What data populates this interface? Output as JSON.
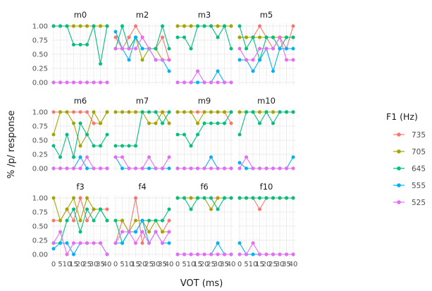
{
  "chart_data": {
    "type": "line",
    "title": "",
    "xlabel": "VOT (ms)",
    "ylabel": "% /p/ response",
    "x": [
      0,
      5,
      10,
      15,
      20,
      25,
      30,
      35,
      40
    ],
    "xticks": [
      "0",
      "5",
      "10",
      "15",
      "20",
      "25",
      "30",
      "35",
      "40"
    ],
    "ylim": [
      0,
      1
    ],
    "yticks": [
      "0.00",
      "0.25",
      "0.50",
      "0.75",
      "1.00"
    ],
    "grid": true,
    "legend": {
      "title": "F1 (Hz)",
      "placement": "right",
      "entries": [
        {
          "label": "735",
          "color": "#f8766d"
        },
        {
          "label": "705",
          "color": "#a3a500"
        },
        {
          "label": "645",
          "color": "#00bf7d"
        },
        {
          "label": "555",
          "color": "#00b0f6"
        },
        {
          "label": "525",
          "color": "#e76bf3"
        }
      ]
    },
    "facets": [
      {
        "title": "m0",
        "series": [
          {
            "name": "735",
            "values": [
              1,
              1,
              1,
              1,
              1,
              1,
              1,
              1,
              1
            ]
          },
          {
            "name": "705",
            "values": [
              1,
              1,
              1,
              1,
              1,
              1,
              1,
              1,
              1
            ]
          },
          {
            "name": "645",
            "values": [
              1,
              1,
              1,
              0.67,
              0.67,
              0.67,
              1,
              0.33,
              1
            ]
          },
          {
            "name": "555",
            "values": [
              0,
              0,
              0,
              0,
              0,
              0,
              0,
              0,
              0
            ]
          },
          {
            "name": "525",
            "values": [
              0,
              0,
              0,
              0,
              0,
              0,
              0,
              0,
              0
            ]
          }
        ]
      },
      {
        "title": "m2",
        "series": [
          {
            "name": "735",
            "values": [
              0.8,
              0.6,
              0.8,
              1,
              0.8,
              0.6,
              0.6,
              0.8,
              0.4
            ]
          },
          {
            "name": "705",
            "values": [
              0.6,
              0.6,
              0.6,
              0.8,
              0.4,
              0.6,
              0.6,
              0.4,
              0.4
            ]
          },
          {
            "name": "645",
            "values": [
              0.6,
              1,
              0.6,
              0.8,
              0.6,
              0.6,
              0.6,
              1,
              0.6
            ]
          },
          {
            "name": "555",
            "values": [
              0.9,
              0.6,
              0.4,
              0.8,
              0.6,
              0.6,
              0.4,
              0.4,
              0.2
            ]
          },
          {
            "name": "525",
            "values": [
              0.6,
              0.6,
              0.6,
              0.6,
              0.8,
              0.6,
              0.4,
              0.4,
              0.4
            ]
          }
        ]
      },
      {
        "title": "m3",
        "series": [
          {
            "name": "735",
            "values": [
              1,
              1,
              1,
              1,
              1,
              1,
              1,
              1,
              1
            ]
          },
          {
            "name": "705",
            "values": [
              1,
              1,
              1,
              1,
              1,
              1,
              1,
              1,
              1
            ]
          },
          {
            "name": "645",
            "values": [
              0.8,
              0.8,
              0.6,
              1,
              1,
              1,
              0.8,
              1,
              0.6
            ]
          },
          {
            "name": "555",
            "values": [
              0,
              0,
              0,
              0,
              0,
              0,
              0.2,
              0,
              0
            ]
          },
          {
            "name": "525",
            "values": [
              0,
              0,
              0,
              0.2,
              0,
              0,
              0,
              0,
              0
            ]
          }
        ]
      },
      {
        "title": "m5",
        "series": [
          {
            "name": "735",
            "values": [
              0.8,
              0.8,
              0.8,
              1,
              0.8,
              0.6,
              0.8,
              0.6,
              1
            ]
          },
          {
            "name": "705",
            "values": [
              0.8,
              0.8,
              0.8,
              0.8,
              0.8,
              0.8,
              0.8,
              0.8,
              0.8
            ]
          },
          {
            "name": "645",
            "values": [
              1,
              0.6,
              0.8,
              0.4,
              0.8,
              0.8,
              0.6,
              0.8,
              0.8
            ]
          },
          {
            "name": "555",
            "values": [
              0.4,
              0.4,
              0.2,
              0.4,
              0.6,
              0.2,
              0.6,
              0.6,
              0.6
            ]
          },
          {
            "name": "525",
            "values": [
              0.6,
              0.4,
              0.4,
              0.6,
              0.6,
              0.6,
              0.8,
              0.4,
              0.4
            ]
          }
        ]
      },
      {
        "title": "m6",
        "series": [
          {
            "name": "735",
            "values": [
              1,
              1,
              1,
              1,
              1,
              1,
              0.8,
              0.8,
              1
            ]
          },
          {
            "name": "705",
            "values": [
              0.6,
              1,
              1,
              0.8,
              0.4,
              0.6,
              1,
              0.8,
              1
            ]
          },
          {
            "name": "645",
            "values": [
              0.4,
              0.2,
              0.6,
              0.2,
              0.8,
              0.6,
              0.4,
              0.4,
              0.6
            ]
          },
          {
            "name": "555",
            "values": [
              0,
              0,
              0,
              0,
              0.2,
              0,
              0,
              0,
              0
            ]
          },
          {
            "name": "525",
            "values": [
              0,
              0,
              0,
              0,
              0,
              0.2,
              0,
              0,
              0
            ]
          }
        ]
      },
      {
        "title": "m7",
        "series": [
          {
            "name": "735",
            "values": [
              1,
              1,
              1,
              1,
              1,
              1,
              1,
              1,
              1
            ]
          },
          {
            "name": "705",
            "values": [
              1,
              1,
              1,
              1,
              1,
              0.8,
              0.8,
              1,
              0.8
            ]
          },
          {
            "name": "645",
            "values": [
              0.4,
              0.4,
              0.4,
              0.4,
              1,
              1,
              1,
              0.8,
              1
            ]
          },
          {
            "name": "555",
            "values": [
              0.2,
              0,
              0,
              0,
              0,
              0,
              0,
              0,
              0
            ]
          },
          {
            "name": "525",
            "values": [
              0.2,
              0.2,
              0,
              0,
              0,
              0.2,
              0,
              0,
              0.2
            ]
          }
        ]
      },
      {
        "title": "m9",
        "series": [
          {
            "name": "735",
            "values": [
              1,
              1,
              1,
              1,
              1,
              1,
              1,
              1,
              0.8
            ]
          },
          {
            "name": "705",
            "values": [
              1,
              1,
              1,
              0.8,
              1,
              1,
              1,
              1,
              1
            ]
          },
          {
            "name": "645",
            "values": [
              0.6,
              0.6,
              0.4,
              0.6,
              0.8,
              0.8,
              0.8,
              0.8,
              1
            ]
          },
          {
            "name": "555",
            "values": [
              0,
              0,
              0,
              0,
              0,
              0.2,
              0,
              0,
              0
            ]
          },
          {
            "name": "525",
            "values": [
              0,
              0,
              0,
              0,
              0,
              0,
              0,
              0,
              0
            ]
          }
        ]
      },
      {
        "title": "m10",
        "series": [
          {
            "name": "735",
            "values": [
              1,
              1,
              1,
              1,
              1,
              1,
              1,
              1,
              1
            ]
          },
          {
            "name": "705",
            "values": [
              1,
              1,
              1,
              1,
              1,
              1,
              1,
              1,
              1
            ]
          },
          {
            "name": "645",
            "values": [
              0.6,
              1,
              1,
              0.8,
              1,
              0.8,
              1,
              1,
              1
            ]
          },
          {
            "name": "555",
            "values": [
              0.1,
              0,
              0,
              0,
              0,
              0,
              0,
              0,
              0.2
            ]
          },
          {
            "name": "525",
            "values": [
              0,
              0.2,
              0,
              0,
              0,
              0,
              0,
              0,
              0
            ]
          }
        ]
      },
      {
        "title": "f3",
        "series": [
          {
            "name": "735",
            "values": [
              0.6,
              0.6,
              0.8,
              0.6,
              1,
              0.6,
              0.8,
              0.8,
              0.8
            ]
          },
          {
            "name": "705",
            "values": [
              1,
              0.6,
              0.8,
              1,
              0.6,
              1,
              0.8,
              0.8,
              0.6
            ]
          },
          {
            "name": "645",
            "values": [
              0.2,
              0.2,
              0.6,
              0.8,
              0.4,
              0.8,
              0.6,
              0.8,
              0.6
            ]
          },
          {
            "name": "555",
            "values": [
              0.1,
              0.2,
              0.2,
              0,
              0.2,
              0.2,
              0.2,
              0.2,
              0
            ]
          },
          {
            "name": "525",
            "values": [
              0.2,
              0.4,
              0,
              0.2,
              0.2,
              0.2,
              0.2,
              0.2,
              0
            ]
          }
        ]
      },
      {
        "title": "f4",
        "series": [
          {
            "name": "735",
            "values": [
              0.2,
              0.6,
              0.4,
              1,
              0.2,
              0.6,
              0.6,
              0.4,
              0.6
            ]
          },
          {
            "name": "705",
            "values": [
              0.6,
              0.6,
              0.4,
              0.6,
              0.6,
              0.4,
              0.6,
              0.4,
              0.4
            ]
          },
          {
            "name": "645",
            "values": [
              0.6,
              0.2,
              0.4,
              0.4,
              0.6,
              0.6,
              0.6,
              0.6,
              0.8
            ]
          },
          {
            "name": "555",
            "values": [
              0.2,
              0.2,
              0.4,
              0.4,
              0.6,
              0.2,
              0.4,
              0.2,
              0.2
            ]
          },
          {
            "name": "525",
            "values": [
              0.2,
              0.4,
              0.4,
              0.2,
              0.4,
              0.2,
              0.4,
              0.2,
              0.4
            ]
          }
        ]
      },
      {
        "title": "f6",
        "series": [
          {
            "name": "735",
            "values": [
              1,
              1,
              1,
              1,
              1,
              1,
              1,
              1,
              1
            ]
          },
          {
            "name": "705",
            "values": [
              1,
              1,
              1,
              1,
              1,
              0.8,
              1,
              1,
              1
            ]
          },
          {
            "name": "645",
            "values": [
              1,
              1,
              0.8,
              1,
              1,
              1,
              0.8,
              1,
              1
            ]
          },
          {
            "name": "555",
            "values": [
              0,
              0,
              0,
              0,
              0,
              0,
              0.2,
              0,
              0
            ]
          },
          {
            "name": "525",
            "values": [
              0,
              0,
              0,
              0,
              0,
              0,
              0,
              0,
              0
            ]
          }
        ]
      },
      {
        "title": "f10",
        "series": [
          {
            "name": "735",
            "values": [
              1,
              1,
              1,
              0.8,
              1,
              1,
              1,
              1,
              1
            ]
          },
          {
            "name": "705",
            "values": [
              1,
              1,
              1,
              1,
              1,
              1,
              1,
              1,
              1
            ]
          },
          {
            "name": "645",
            "values": [
              1,
              1,
              1,
              1,
              1,
              1,
              1,
              1,
              1
            ]
          },
          {
            "name": "555",
            "values": [
              0.2,
              0,
              0,
              0,
              0,
              0,
              0,
              0,
              0
            ]
          },
          {
            "name": "525",
            "values": [
              0,
              0,
              0.2,
              0,
              0,
              0,
              0,
              0,
              0
            ]
          }
        ]
      }
    ]
  }
}
